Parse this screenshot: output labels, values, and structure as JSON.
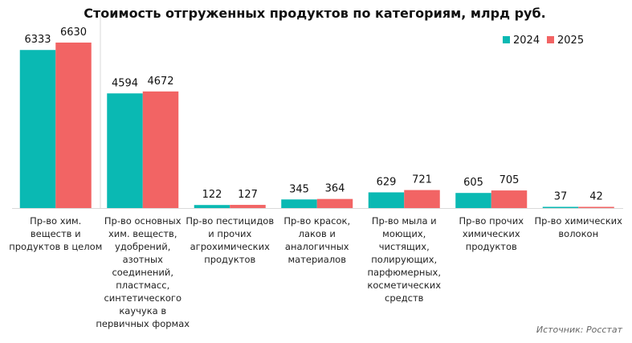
{
  "chart_data": {
    "type": "bar",
    "title": "Стоимость отгруженных продуктов по категориям, млрд руб.",
    "categories": [
      [
        "Пр-во хим.",
        "веществ и",
        "продуктов в целом"
      ],
      [
        "Пр-во основных",
        "хим. веществ,",
        "удобрений,",
        "азотных",
        "соединений,",
        "пластмасс,",
        "синтетического",
        "каучука в",
        "первичных формах"
      ],
      [
        "Пр-во пестицидов",
        "и прочих",
        "агрохимических",
        "продуктов"
      ],
      [
        "Пр-во красок,",
        "лаков и",
        "аналогичных",
        "материалов"
      ],
      [
        "Пр-во мыла и",
        "моющих,",
        "чистящих,",
        "полирующих,",
        "парфюмерных,",
        "косметических",
        "средств"
      ],
      [
        "Пр-во прочих",
        "химических",
        "продуктов"
      ],
      [
        "Пр-во химических",
        "волокон"
      ]
    ],
    "series": [
      {
        "name": "2024",
        "color": "#0ab9b3",
        "values": [
          6333,
          4594,
          122,
          345,
          629,
          605,
          37
        ]
      },
      {
        "name": "2025",
        "color": "#f26464",
        "values": [
          6630,
          4672,
          127,
          364,
          721,
          705,
          42
        ]
      }
    ],
    "xlabel": "",
    "ylabel": "",
    "ylim": [
      0,
      7000
    ],
    "grid": false,
    "legend": "top-right",
    "data_labels": true,
    "source": "Источник: Росстат"
  }
}
